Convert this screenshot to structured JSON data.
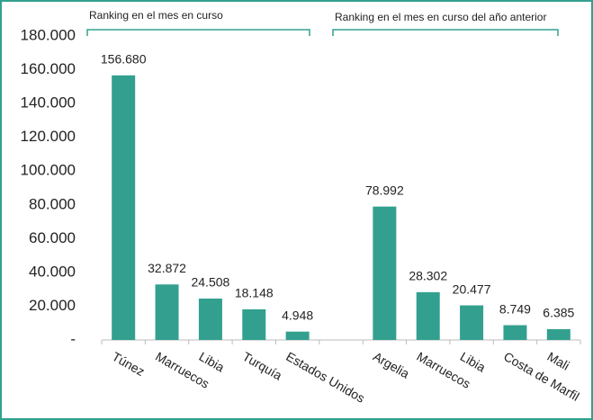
{
  "chart_data": {
    "type": "bar",
    "annotations": [
      "Ranking en el mes en curso",
      "Ranking en el mes en curso del año anterior"
    ],
    "categories": [
      "Túnez",
      "Marruecos",
      "Libia",
      "Turquía",
      "Estados Unidos",
      null,
      "Argelia",
      "Marruecos",
      "Libia",
      "Costa de Marfil",
      "Mali"
    ],
    "values": [
      156680,
      32872,
      24508,
      18148,
      4948,
      null,
      78992,
      28302,
      20477,
      8749,
      6385
    ],
    "value_labels": [
      "156.680",
      "32.872",
      "24.508",
      "18.148",
      "4.948",
      null,
      "78.992",
      "28.302",
      "20.477",
      "8.749",
      "6.385"
    ],
    "color": "#33a08f",
    "ylim": [
      0,
      180000
    ],
    "yticks": [
      {
        "value": 0,
        "label": "-"
      },
      {
        "value": 20000,
        "label": "20.000"
      },
      {
        "value": 40000,
        "label": "40.000"
      },
      {
        "value": 60000,
        "label": "60.000"
      },
      {
        "value": 80000,
        "label": "80.000"
      },
      {
        "value": 100000,
        "label": "100.000"
      },
      {
        "value": 120000,
        "label": "120.000"
      },
      {
        "value": 140000,
        "label": "140.000"
      },
      {
        "value": 160000,
        "label": "160.000"
      },
      {
        "value": 180000,
        "label": "180.000"
      }
    ],
    "grid": false
  }
}
